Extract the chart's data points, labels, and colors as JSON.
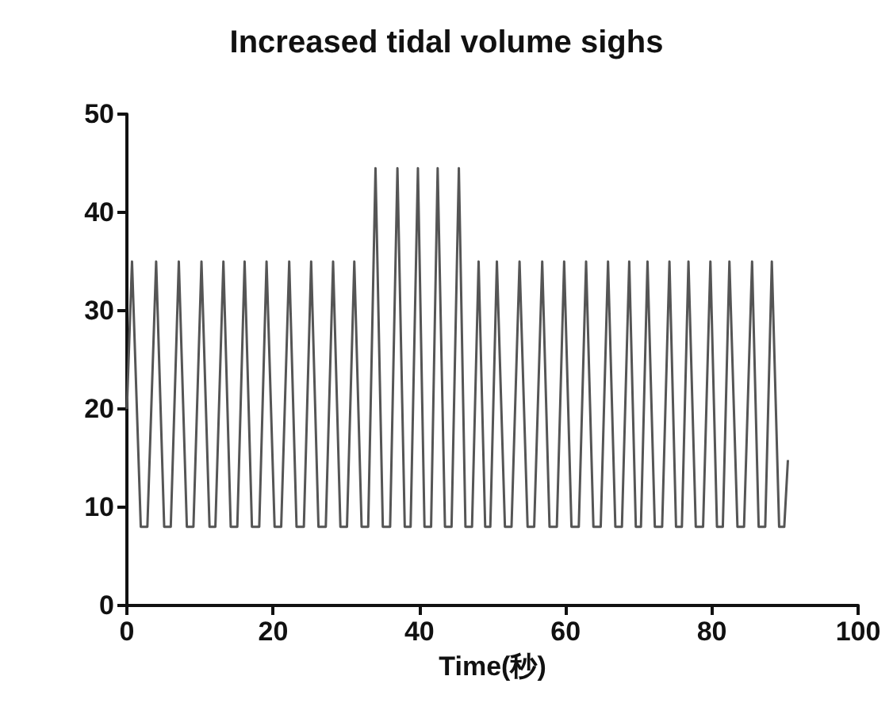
{
  "chart_data": {
    "type": "line",
    "title": "Increased tidal volume sighs",
    "xlabel": "Time(秒)",
    "series": [
      {
        "color": "#555555",
        "x": [
          0,
          0.7,
          1.9,
          2.8,
          4.0,
          5.1,
          6.0,
          7.1,
          8.2,
          9.1,
          10.2,
          11.3,
          12.1,
          13.2,
          14.2,
          15.1,
          16.1,
          17.1,
          18.1,
          19.1,
          20.2,
          21.1,
          22.2,
          23.2,
          24.2,
          25.2,
          26.2,
          27.2,
          28.2,
          29.2,
          30.1,
          31.1,
          32.1,
          33.0,
          34.0,
          35.0,
          36.0,
          37.0,
          38.0,
          38.8,
          39.8,
          40.7,
          41.6,
          42.5,
          43.5,
          44.4,
          45.4,
          46.3,
          47.2,
          48.1,
          49.0,
          49.7,
          50.6,
          51.7,
          52.6,
          53.7,
          54.8,
          55.7,
          56.8,
          57.8,
          58.8,
          59.8,
          60.8,
          61.8,
          62.8,
          63.8,
          64.8,
          65.8,
          66.8,
          67.7,
          68.7,
          69.6,
          70.3,
          71.2,
          72.2,
          73.2,
          74.2,
          75.1,
          75.9,
          76.8,
          77.8,
          78.8,
          79.8,
          80.7,
          81.5,
          82.4,
          83.5,
          84.4,
          85.5,
          86.4,
          87.3,
          88.2,
          89.2,
          89.9,
          90.4
        ],
        "values": [
          20,
          35,
          8,
          8,
          35,
          8,
          8,
          35,
          8,
          8,
          35,
          8,
          8,
          35,
          8,
          8,
          35,
          8,
          8,
          35,
          8,
          8,
          35,
          8,
          8,
          35,
          8,
          8,
          35,
          8,
          8,
          35,
          8,
          8,
          44.5,
          8,
          8,
          44.5,
          8,
          8,
          44.5,
          8,
          8,
          44.5,
          8,
          8,
          44.5,
          8,
          8,
          35,
          8,
          8,
          35,
          8,
          8,
          35,
          8,
          8,
          35,
          8,
          8,
          35,
          8,
          8,
          35,
          8,
          8,
          35,
          8,
          8,
          35,
          8,
          8,
          35,
          8,
          8,
          35,
          8,
          8,
          35,
          8,
          8,
          35,
          8,
          8,
          35,
          8,
          8,
          35,
          8,
          8,
          35,
          8,
          8,
          14.8
        ]
      }
    ],
    "xlim": [
      0,
      100
    ],
    "xticks": [
      0,
      20,
      40,
      60,
      80,
      100
    ],
    "ylim": [
      0,
      50
    ],
    "yticks": [
      0,
      10,
      20,
      30,
      40,
      50
    ],
    "marker": "none",
    "line_style": "solid"
  }
}
